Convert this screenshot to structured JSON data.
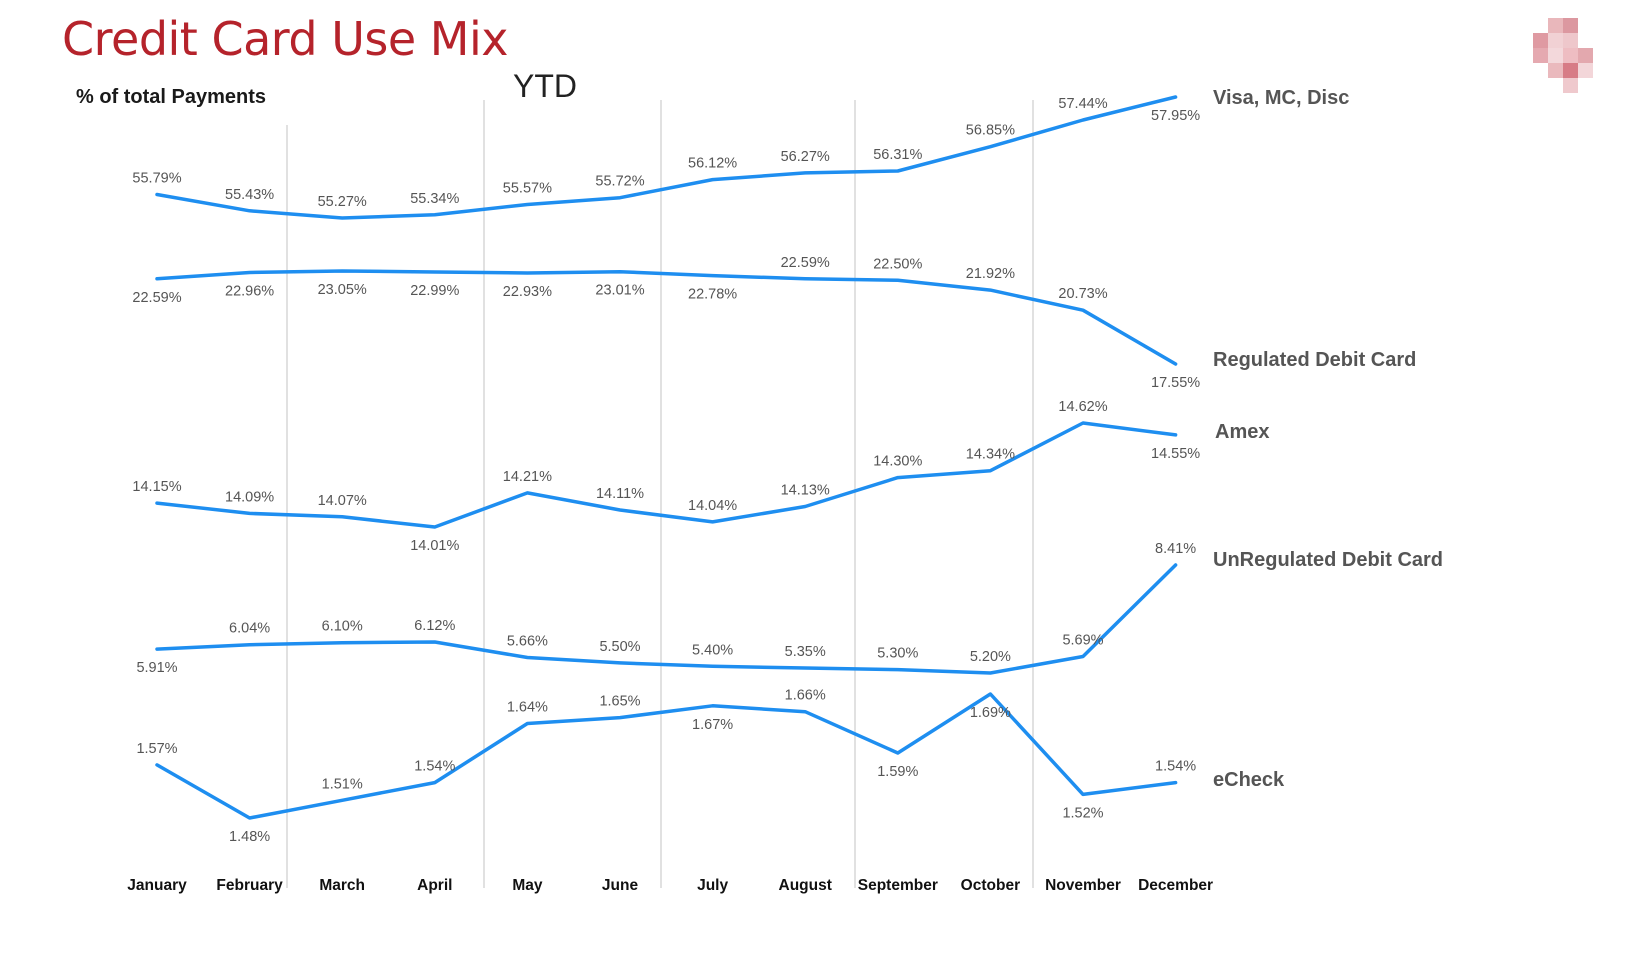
{
  "title": "Credit Card Use Mix",
  "chart_data": {
    "type": "line",
    "title": "Credit Card Use Mix",
    "subtitle": "YTD",
    "ylabel": "% of total Payments",
    "xlabel": "",
    "grid": "vertical lines at quarter boundaries",
    "legend": "series labels at right end of lines",
    "line_color": "#1e8ef0",
    "categories": [
      "January",
      "February",
      "March",
      "April",
      "May",
      "June",
      "July",
      "August",
      "September",
      "October",
      "November",
      "December"
    ],
    "series": [
      {
        "name": "Visa, MC, Disc",
        "values": [
          55.79,
          55.43,
          55.27,
          55.34,
          55.57,
          55.72,
          56.12,
          56.27,
          56.31,
          56.85,
          57.44,
          57.95
        ],
        "labels": [
          "55.79%",
          "55.43%",
          "55.27%",
          "55.34%",
          "55.57%",
          "55.72%",
          "56.12%",
          "56.27%",
          "56.31%",
          "56.85%",
          "57.44%",
          "57.95%"
        ]
      },
      {
        "name": "Regulated Debit Card",
        "values": [
          22.59,
          22.96,
          23.05,
          22.99,
          22.93,
          23.01,
          22.78,
          22.59,
          22.5,
          21.92,
          20.73,
          17.55
        ],
        "labels": [
          "22.59%",
          "22.96%",
          "23.05%",
          "22.99%",
          "22.93%",
          "23.01%",
          "22.78%",
          "22.59%",
          "22.50%",
          "21.92%",
          "20.73%",
          "17.55%"
        ]
      },
      {
        "name": "Amex",
        "values": [
          14.15,
          14.09,
          14.07,
          14.01,
          14.21,
          14.11,
          14.04,
          14.13,
          14.3,
          14.34,
          14.62,
          14.55
        ],
        "labels": [
          "14.15%",
          "14.09%",
          "14.07%",
          "14.01%",
          "14.21%",
          "14.11%",
          "14.04%",
          "14.13%",
          "14.30%",
          "14.34%",
          "14.62%",
          "14.55%"
        ]
      },
      {
        "name": "UnRegulated Debit Card",
        "values": [
          5.91,
          6.04,
          6.1,
          6.12,
          5.66,
          5.5,
          5.4,
          5.35,
          5.3,
          5.2,
          5.69,
          8.41
        ],
        "labels": [
          "5.91%",
          "6.04%",
          "6.10%",
          "6.12%",
          "5.66%",
          "5.50%",
          "5.40%",
          "5.35%",
          "5.30%",
          "5.20%",
          "5.69%",
          "8.41%"
        ]
      },
      {
        "name": "eCheck",
        "values": [
          1.57,
          1.48,
          1.51,
          1.54,
          1.64,
          1.65,
          1.67,
          1.66,
          1.59,
          1.69,
          1.52,
          1.54
        ],
        "labels": [
          "1.57%",
          "1.48%",
          "1.51%",
          "1.54%",
          "1.64%",
          "1.65%",
          "1.67%",
          "1.66%",
          "1.59%",
          "1.69%",
          "1.52%",
          "1.54%"
        ]
      }
    ]
  }
}
